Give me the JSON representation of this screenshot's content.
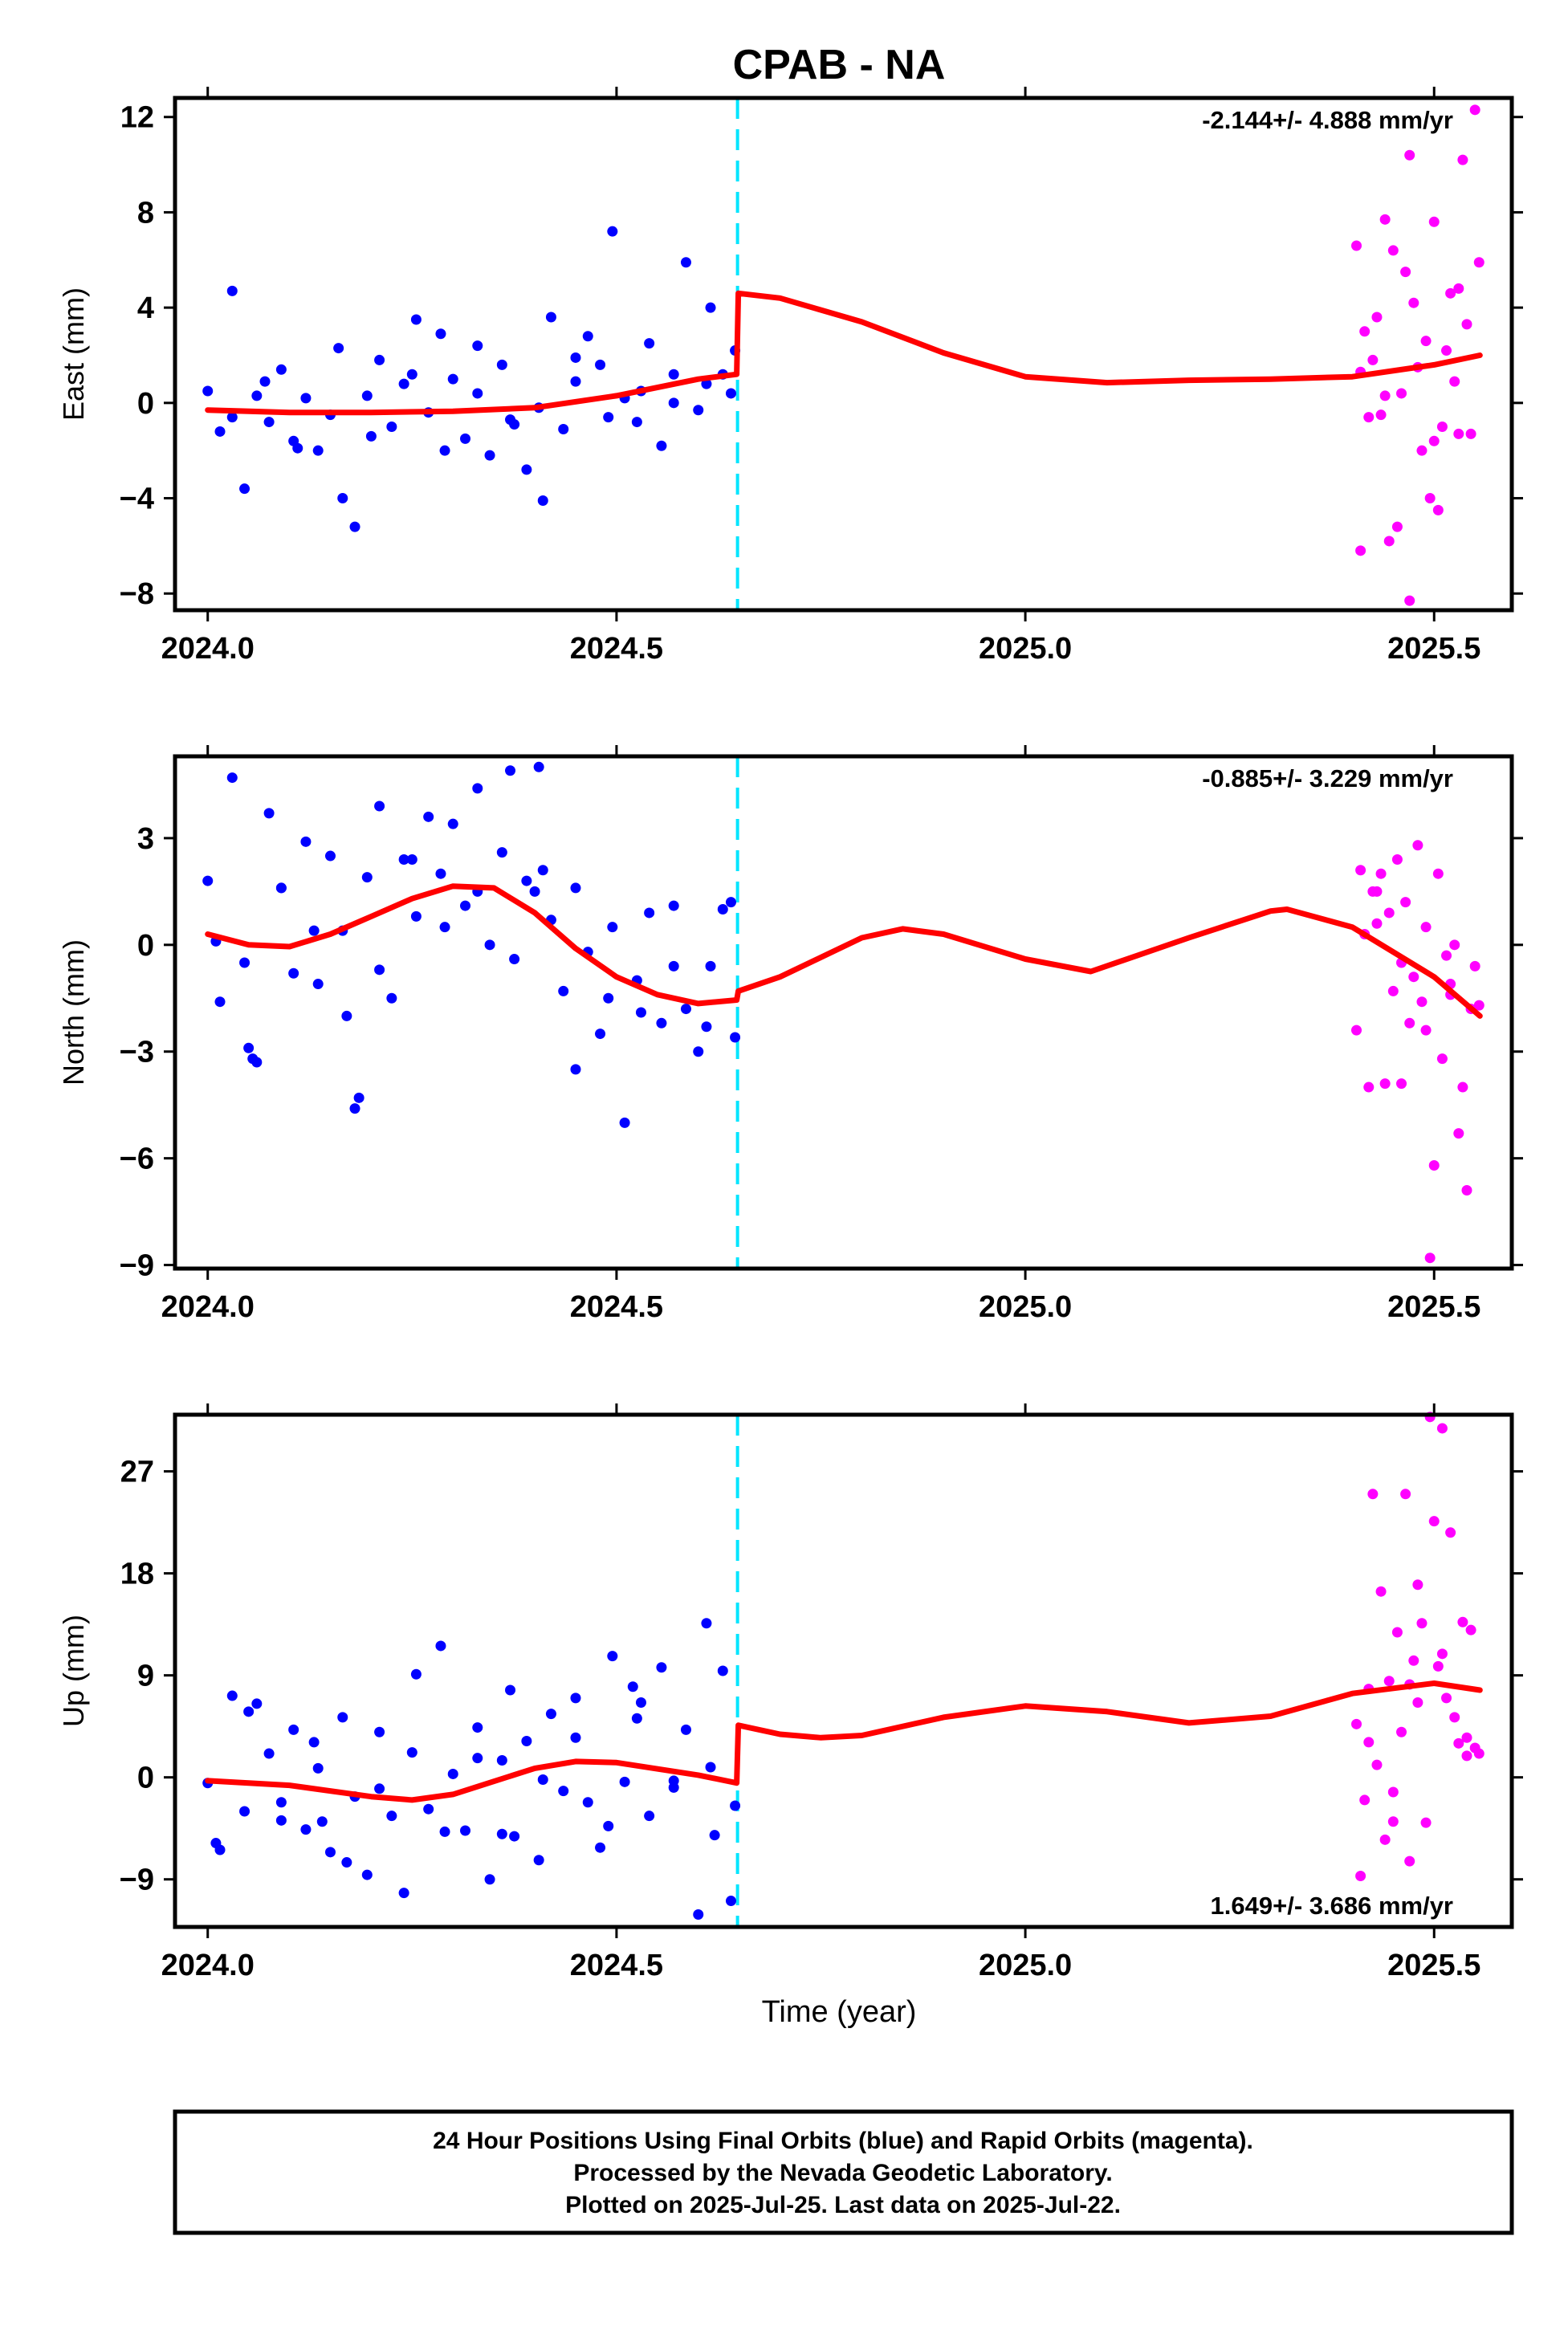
{
  "title": "CPAB - NA",
  "xlabel": "Time (year)",
  "footer": [
    "24 Hour Positions Using Final Orbits (blue) and Rapid Orbits (magenta).",
    "Processed by the Nevada Geodetic Laboratory.",
    "Plotted on 2025-Jul-25. Last data on 2025-Jul-22."
  ],
  "colors": {
    "final": "#0000ff",
    "rapid": "#ff00ff",
    "model": "#ff0000",
    "step": "#00e5ff"
  },
  "chart_data": [
    {
      "type": "scatter",
      "ylabel": "East (mm)",
      "rate": "-2.144+/- 4.888 mm/yr",
      "xlim": [
        2023.96,
        2025.595
      ],
      "ylim": [
        -8.7,
        12.8
      ],
      "xticks": [
        2024.0,
        2024.5,
        2025.0,
        2025.5
      ],
      "xtick_labels": [
        "2024.0",
        "2024.5",
        "2025.0",
        "2025.5"
      ],
      "yticks": [
        -8,
        -4,
        0,
        4,
        8,
        12
      ],
      "ytick_labels": [
        "−8",
        "−4",
        "0",
        "4",
        "8",
        "12"
      ],
      "step_x": 2024.648,
      "model": {
        "x": [
          2024.0,
          2024.1,
          2024.2,
          2024.3,
          2024.4,
          2024.5,
          2024.6,
          2024.647,
          2024.649,
          2024.7,
          2024.8,
          2024.9,
          2025.0,
          2025.1,
          2025.2,
          2025.3,
          2025.4,
          2025.5,
          2025.556
        ],
        "y": [
          -0.3,
          -0.4,
          -0.4,
          -0.35,
          -0.2,
          0.3,
          1.0,
          1.2,
          4.6,
          4.4,
          3.4,
          2.1,
          1.1,
          0.85,
          0.95,
          1.0,
          1.1,
          1.6,
          2.0
        ]
      },
      "final": {
        "x": [
          2024.0,
          2024.015,
          2024.03,
          2024.045,
          2024.06,
          2024.075,
          2024.09,
          2024.105,
          2024.12,
          2024.135,
          2024.15,
          2024.165,
          2024.18,
          2024.195,
          2024.21,
          2024.225,
          2024.24,
          2024.255,
          2024.27,
          2024.285,
          2024.3,
          2024.315,
          2024.33,
          2024.345,
          2024.36,
          2024.375,
          2024.39,
          2024.405,
          2024.42,
          2024.435,
          2024.45,
          2024.465,
          2024.48,
          2024.495,
          2024.51,
          2024.525,
          2024.54,
          2024.555,
          2024.57,
          2024.585,
          2024.6,
          2024.615,
          2024.63,
          2024.645,
          2024.03,
          2024.07,
          2024.11,
          2024.16,
          2024.2,
          2024.25,
          2024.29,
          2024.33,
          2024.37,
          2024.41,
          2024.45,
          2024.49,
          2024.53,
          2024.57,
          2024.61,
          2024.64
        ],
        "y": [
          0.5,
          -1.2,
          4.7,
          -3.6,
          0.3,
          -0.8,
          1.4,
          -1.6,
          0.2,
          -2.0,
          -0.5,
          -4.0,
          -5.2,
          0.3,
          1.8,
          -1.0,
          0.8,
          3.5,
          -0.4,
          2.9,
          1.0,
          -1.5,
          0.4,
          -2.2,
          1.6,
          -0.9,
          -2.8,
          -0.2,
          3.6,
          -1.1,
          0.9,
          2.8,
          1.6,
          7.2,
          0.2,
          -0.8,
          2.5,
          -1.8,
          1.2,
          5.9,
          -0.3,
          4.0,
          1.2,
          2.2,
          -0.6,
          0.9,
          -1.9,
          2.3,
          -1.4,
          1.2,
          -2.0,
          2.4,
          -0.7,
          -4.1,
          1.9,
          -0.6,
          0.5,
          0.0,
          0.8,
          0.4
        ]
      },
      "rapid": {
        "x": [
          2025.405,
          2025.41,
          2025.415,
          2025.42,
          2025.425,
          2025.43,
          2025.435,
          2025.44,
          2025.445,
          2025.45,
          2025.455,
          2025.46,
          2025.465,
          2025.47,
          2025.475,
          2025.48,
          2025.485,
          2025.49,
          2025.495,
          2025.5,
          2025.505,
          2025.51,
          2025.515,
          2025.52,
          2025.525,
          2025.53,
          2025.535,
          2025.54,
          2025.545,
          2025.55,
          2025.555,
          2025.41,
          2025.44,
          2025.47,
          2025.5,
          2025.53
        ],
        "y": [
          6.6,
          -6.2,
          3.0,
          -0.6,
          1.8,
          3.6,
          -0.5,
          7.7,
          -5.8,
          6.4,
          -5.2,
          0.4,
          5.5,
          -8.3,
          4.2,
          1.5,
          -2.0,
          2.6,
          -4.0,
          7.6,
          -4.5,
          -1.0,
          2.2,
          4.6,
          0.9,
          4.8,
          10.2,
          3.3,
          -1.3,
          12.3,
          5.9,
          1.3,
          0.3,
          10.4,
          -1.6,
          -1.3
        ]
      }
    },
    {
      "type": "scatter",
      "ylabel": "North (mm)",
      "rate": "-0.885+/- 3.229 mm/yr",
      "xlim": [
        2023.96,
        2025.595
      ],
      "ylim": [
        -9.1,
        5.3
      ],
      "xticks": [
        2024.0,
        2024.5,
        2025.0,
        2025.5
      ],
      "xtick_labels": [
        "2024.0",
        "2024.5",
        "2025.0",
        "2025.5"
      ],
      "yticks": [
        -9,
        -6,
        -3,
        0,
        3
      ],
      "ytick_labels": [
        "−9",
        "−6",
        "−3",
        "0",
        "3"
      ],
      "step_x": 2024.648,
      "model": {
        "x": [
          2024.0,
          2024.05,
          2024.1,
          2024.15,
          2024.2,
          2024.25,
          2024.3,
          2024.35,
          2024.4,
          2024.45,
          2024.5,
          2024.55,
          2024.6,
          2024.647,
          2024.649,
          2024.7,
          2024.8,
          2024.85,
          2024.9,
          2025.0,
          2025.08,
          2025.2,
          2025.3,
          2025.32,
          2025.4,
          2025.5,
          2025.556
        ],
        "y": [
          0.3,
          0.0,
          -0.05,
          0.3,
          0.8,
          1.3,
          1.65,
          1.6,
          0.9,
          -0.1,
          -0.9,
          -1.4,
          -1.65,
          -1.55,
          -1.3,
          -0.9,
          0.2,
          0.45,
          0.3,
          -0.4,
          -0.75,
          0.2,
          0.95,
          1.0,
          0.5,
          -0.9,
          -2.0
        ]
      },
      "final": {
        "x": [
          2024.0,
          2024.015,
          2024.03,
          2024.045,
          2024.06,
          2024.075,
          2024.09,
          2024.105,
          2024.12,
          2024.135,
          2024.15,
          2024.165,
          2024.18,
          2024.195,
          2024.21,
          2024.225,
          2024.24,
          2024.255,
          2024.27,
          2024.285,
          2024.3,
          2024.315,
          2024.33,
          2024.345,
          2024.36,
          2024.375,
          2024.39,
          2024.405,
          2024.42,
          2024.435,
          2024.45,
          2024.465,
          2024.48,
          2024.495,
          2024.51,
          2024.525,
          2024.54,
          2024.555,
          2024.57,
          2024.585,
          2024.6,
          2024.615,
          2024.63,
          2024.645,
          2024.01,
          2024.05,
          2024.09,
          2024.13,
          2024.17,
          2024.21,
          2024.25,
          2024.29,
          2024.33,
          2024.37,
          2024.41,
          2024.45,
          2024.49,
          2024.53,
          2024.57,
          2024.61,
          2024.64,
          2024.055,
          2024.185,
          2024.4
        ],
        "y": [
          1.8,
          -1.6,
          4.7,
          -0.5,
          -3.3,
          3.7,
          1.6,
          -0.8,
          2.9,
          -1.1,
          2.5,
          0.4,
          -4.6,
          1.9,
          3.9,
          -1.5,
          2.4,
          0.8,
          3.6,
          2.0,
          3.4,
          1.1,
          4.4,
          0.0,
          2.6,
          -0.4,
          1.8,
          5.0,
          0.7,
          -1.3,
          1.6,
          -0.2,
          -2.5,
          0.5,
          -5.0,
          -1.0,
          0.9,
          -2.2,
          1.1,
          -1.8,
          -3.0,
          -0.6,
          1.0,
          -2.6,
          0.1,
          -2.9,
          1.6,
          0.4,
          -2.0,
          -0.7,
          2.4,
          0.5,
          1.5,
          4.9,
          2.1,
          -3.5,
          -1.5,
          -1.9,
          -0.6,
          -2.3,
          1.2,
          -3.2,
          -4.3,
          1.5
        ]
      },
      "rapid": {
        "x": [
          2025.405,
          2025.41,
          2025.415,
          2025.42,
          2025.425,
          2025.43,
          2025.435,
          2025.44,
          2025.445,
          2025.45,
          2025.455,
          2025.46,
          2025.465,
          2025.47,
          2025.475,
          2025.48,
          2025.485,
          2025.49,
          2025.495,
          2025.5,
          2025.505,
          2025.51,
          2025.515,
          2025.52,
          2025.525,
          2025.53,
          2025.535,
          2025.54,
          2025.545,
          2025.55,
          2025.555,
          2025.43,
          2025.46,
          2025.49,
          2025.52
        ],
        "y": [
          -2.4,
          2.1,
          0.3,
          -4.0,
          1.5,
          0.6,
          2.0,
          -3.9,
          0.9,
          -1.3,
          2.4,
          -0.5,
          1.2,
          -2.2,
          -0.9,
          2.8,
          -1.6,
          0.5,
          -8.8,
          -6.2,
          2.0,
          -3.2,
          -0.3,
          -1.4,
          0.0,
          -5.3,
          -4.0,
          -6.9,
          -1.8,
          -0.6,
          -1.7,
          1.5,
          -3.9,
          -2.4,
          -1.1
        ]
      }
    },
    {
      "type": "scatter",
      "ylabel": "Up (mm)",
      "rate": "1.649+/- 3.686 mm/yr",
      "xlim": [
        2023.96,
        2025.595
      ],
      "ylim": [
        -13.2,
        32.0
      ],
      "xticks": [
        2024.0,
        2024.5,
        2025.0,
        2025.5
      ],
      "xtick_labels": [
        "2024.0",
        "2024.5",
        "2025.0",
        "2025.5"
      ],
      "yticks": [
        -9,
        0,
        9,
        18,
        27
      ],
      "ytick_labels": [
        "−9",
        "0",
        "9",
        "18",
        "27"
      ],
      "step_x": 2024.648,
      "model": {
        "x": [
          2024.0,
          2024.1,
          2024.2,
          2024.25,
          2024.3,
          2024.4,
          2024.45,
          2024.5,
          2024.6,
          2024.647,
          2024.649,
          2024.7,
          2024.75,
          2024.8,
          2024.9,
          2025.0,
          2025.1,
          2025.2,
          2025.3,
          2025.4,
          2025.5,
          2025.556
        ],
        "y": [
          -0.3,
          -0.7,
          -1.7,
          -2.0,
          -1.5,
          0.8,
          1.4,
          1.3,
          0.2,
          -0.5,
          4.6,
          3.8,
          3.5,
          3.7,
          5.3,
          6.3,
          5.8,
          4.8,
          5.4,
          7.4,
          8.3,
          7.7
        ]
      },
      "final": {
        "x": [
          2024.0,
          2024.015,
          2024.03,
          2024.045,
          2024.06,
          2024.075,
          2024.09,
          2024.105,
          2024.12,
          2024.135,
          2024.15,
          2024.165,
          2024.18,
          2024.195,
          2024.21,
          2024.225,
          2024.24,
          2024.255,
          2024.27,
          2024.285,
          2024.3,
          2024.315,
          2024.33,
          2024.345,
          2024.36,
          2024.375,
          2024.39,
          2024.405,
          2024.42,
          2024.435,
          2024.45,
          2024.465,
          2024.48,
          2024.495,
          2024.51,
          2024.525,
          2024.54,
          2024.555,
          2024.57,
          2024.585,
          2024.6,
          2024.615,
          2024.63,
          2024.645,
          2024.01,
          2024.05,
          2024.09,
          2024.13,
          2024.17,
          2024.21,
          2024.25,
          2024.29,
          2024.33,
          2024.37,
          2024.41,
          2024.45,
          2024.49,
          2024.53,
          2024.57,
          2024.61,
          2024.64,
          2024.62,
          2024.36,
          2024.52,
          2024.14
        ],
        "y": [
          -0.5,
          -6.4,
          7.2,
          -3.0,
          6.5,
          2.1,
          -2.2,
          4.2,
          -4.6,
          0.8,
          -6.6,
          5.3,
          -1.7,
          -8.6,
          4.0,
          -3.4,
          -10.2,
          9.1,
          -2.8,
          11.6,
          0.3,
          -4.7,
          4.4,
          -9.0,
          1.5,
          -5.2,
          3.2,
          -7.3,
          5.6,
          -1.2,
          7.0,
          -2.2,
          -6.2,
          10.7,
          -0.4,
          5.2,
          -3.4,
          9.7,
          -0.9,
          4.2,
          -12.1,
          0.9,
          9.4,
          -2.5,
          -5.8,
          5.8,
          -3.8,
          3.1,
          -7.5,
          -1.0,
          2.2,
          -4.8,
          1.7,
          7.7,
          -0.2,
          3.5,
          -4.3,
          6.6,
          -0.3,
          13.6,
          -10.9,
          -5.1,
          -5.0,
          8.0,
          -3.9
        ]
      },
      "rapid": {
        "x": [
          2025.405,
          2025.41,
          2025.415,
          2025.42,
          2025.425,
          2025.43,
          2025.435,
          2025.44,
          2025.445,
          2025.45,
          2025.455,
          2025.46,
          2025.465,
          2025.47,
          2025.475,
          2025.48,
          2025.485,
          2025.49,
          2025.495,
          2025.5,
          2025.505,
          2025.51,
          2025.515,
          2025.52,
          2025.525,
          2025.53,
          2025.535,
          2025.54,
          2025.545,
          2025.55,
          2025.555,
          2025.42,
          2025.45,
          2025.48,
          2025.51,
          2025.54,
          2025.47
        ],
        "y": [
          4.7,
          -8.7,
          -2.0,
          7.8,
          25.0,
          1.1,
          16.4,
          -5.5,
          8.5,
          -1.3,
          12.8,
          4.0,
          25.0,
          -7.4,
          10.3,
          6.6,
          13.6,
          -4.0,
          31.8,
          22.6,
          9.8,
          30.8,
          7.0,
          21.6,
          5.3,
          3.0,
          13.7,
          1.9,
          13.0,
          2.6,
          2.1,
          3.1,
          -3.9,
          17.0,
          10.9,
          3.5,
          8.2
        ]
      }
    }
  ]
}
